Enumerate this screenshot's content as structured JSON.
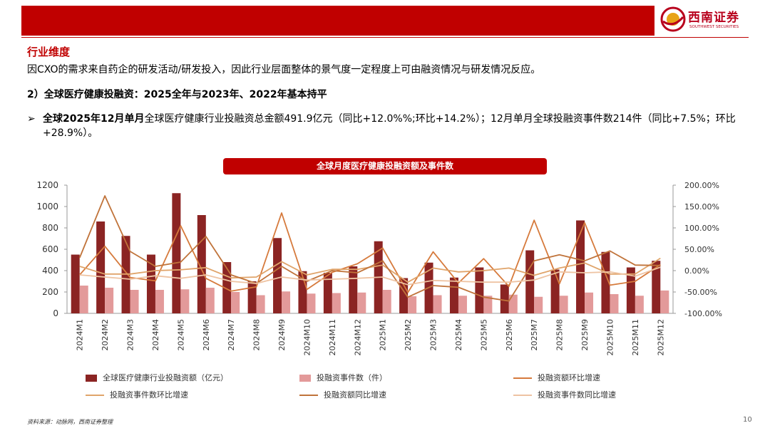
{
  "header": {
    "logo_text": "西南证券",
    "logo_sub": "SOUTHWEST SECURITIES"
  },
  "section_title": "行业维度",
  "intro": "因CXO的需求来自药企的研发活动/研发投入，因此行业层面整体的景气度一定程度上可由融资情况与研发情况反应。",
  "subhead": "2）全球医疗健康投融资：2025全年与2023年、2022年基本持平",
  "bullet": {
    "mark": "➢",
    "bold": "全球2025年12月单月",
    "text": "全球医疗健康行业投融资总金额491.9亿元（同比+12.0%%;环比+14.2%）；12月单月全球投融资事件数214件（同比+7.5%；环比+28.9%）。"
  },
  "chart_title": "全球月度医疗健康投融资额及事件数",
  "source": "资料来源：动脉网，西南证券整理",
  "page_number": "10",
  "colors": {
    "brand_red": "#c00000",
    "bar_dark": "#8b2423",
    "bar_light": "#e39a9a",
    "line1": "#d67a3c",
    "line2": "#e0a46a",
    "line3": "#c0733a",
    "line4": "#eec3a2"
  },
  "chart_data": {
    "type": "bar",
    "categories": [
      "2024M1",
      "2024M2",
      "2024M3",
      "2024M4",
      "2024M5",
      "2024M6",
      "2024M7",
      "2024M8",
      "2024M9",
      "2024M10",
      "2024M11",
      "2024M12",
      "2025M1",
      "2025M2",
      "2025M3",
      "2025M4",
      "2025M5",
      "2025M6",
      "2025M7",
      "2025M8",
      "2025M9",
      "2025M10",
      "2025M11",
      "2025M12"
    ],
    "y_left": {
      "range": [
        0,
        1200
      ],
      "ticks": [
        "0",
        "200",
        "400",
        "600",
        "800",
        "1000",
        "1200"
      ]
    },
    "y_right": {
      "range": [
        -100,
        200
      ],
      "ticks": [
        "-100.00%",
        "-50.00%",
        "0.00%",
        "50.00%",
        "100.00%",
        "150.00%",
        "200.00%"
      ]
    },
    "series": [
      {
        "name": "全球医疗健康行业投融资额（亿元）",
        "type": "bar",
        "axis": "left",
        "color": "#8b2423",
        "values": [
          550,
          860,
          725,
          550,
          1125,
          920,
          480,
          300,
          705,
          395,
          380,
          440,
          675,
          330,
          475,
          335,
          430,
          270,
          590,
          410,
          870,
          575,
          430,
          492
        ]
      },
      {
        "name": "投融资事件数（件）",
        "type": "bar",
        "axis": "left",
        "color": "#e39a9a",
        "values": [
          260,
          240,
          220,
          220,
          225,
          240,
          200,
          170,
          205,
          185,
          190,
          195,
          220,
          160,
          170,
          165,
          165,
          175,
          155,
          165,
          195,
          180,
          165,
          214
        ]
      },
      {
        "name": "投融资额环比增速",
        "type": "line",
        "axis": "right",
        "color": "#d67a3c",
        "values": [
          -10,
          57,
          -16,
          -24,
          105,
          -18,
          -48,
          -38,
          135,
          -44,
          -4,
          16,
          53,
          -51,
          44,
          -29,
          28,
          -37,
          118,
          -31,
          112,
          -34,
          -25,
          14
        ]
      },
      {
        "name": "投融资事件数环比增速",
        "type": "line",
        "axis": "right",
        "color": "#e0a46a",
        "values": [
          10,
          -8,
          -8,
          0,
          2,
          7,
          -17,
          -15,
          21,
          -10,
          3,
          3,
          13,
          -27,
          6,
          -3,
          0,
          6,
          -11,
          6,
          18,
          -8,
          -8,
          29
        ]
      },
      {
        "name": "投融资额同比增速",
        "type": "line",
        "axis": "right",
        "color": "#c0733a",
        "values": [
          30,
          175,
          45,
          10,
          20,
          80,
          -10,
          -30,
          10,
          -25,
          0,
          -5,
          23,
          -62,
          -35,
          -39,
          -62,
          -71,
          23,
          37,
          23,
          46,
          13,
          12
        ]
      },
      {
        "name": "投融资事件数同比增速",
        "type": "line",
        "axis": "right",
        "color": "#eec3a2",
        "values": [
          -10,
          -15,
          -20,
          -12,
          -18,
          -10,
          -25,
          -30,
          -15,
          -22,
          -20,
          -18,
          -15,
          -33,
          -23,
          -25,
          -27,
          -27,
          -22,
          -3,
          -5,
          -3,
          -13,
          8
        ]
      }
    ]
  }
}
